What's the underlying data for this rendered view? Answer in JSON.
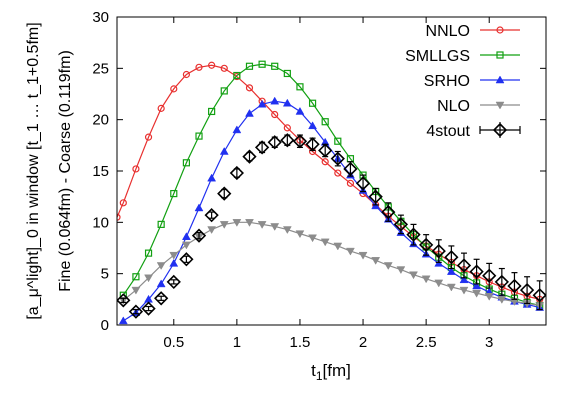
{
  "chart_data": {
    "type": "line",
    "xlabel": "t",
    "xlabel_sub": "1",
    "xlabel_unit": "[fm]",
    "ylabel_line1": "[a_μ^light]_0 in window [t_1 … t_1+0.5fm]",
    "ylabel_line2": "Fine (0.064fm) - Coarse (0.119fm)",
    "xlim": [
      0.05,
      3.45
    ],
    "ylim": [
      0,
      30
    ],
    "xticks": [
      0.5,
      1,
      1.5,
      2,
      2.5,
      3
    ],
    "xtick_labels": [
      "0.5",
      "1",
      "1.5",
      "2",
      "2.5",
      "3"
    ],
    "yticks": [
      0,
      5,
      10,
      15,
      20,
      25,
      30
    ],
    "ytick_labels": [
      "0",
      "5",
      "10",
      "15",
      "20",
      "25",
      "30"
    ],
    "legend_position": "top-right",
    "series": [
      {
        "name": "NNLO",
        "color": "#e8302f",
        "marker": "circle",
        "x": [
          0.05,
          0.1,
          0.2,
          0.3,
          0.4,
          0.5,
          0.6,
          0.7,
          0.8,
          0.9,
          1.0,
          1.1,
          1.2,
          1.3,
          1.4,
          1.5,
          1.6,
          1.7,
          1.8,
          1.9,
          2.0,
          2.1,
          2.2,
          2.3,
          2.4,
          2.5,
          2.6,
          2.7,
          2.8,
          2.9,
          3.0,
          3.1,
          3.2,
          3.3,
          3.4
        ],
        "y": [
          10.5,
          11.9,
          15.2,
          18.3,
          21.1,
          23.0,
          24.4,
          25.1,
          25.3,
          25.0,
          24.2,
          23.1,
          21.8,
          20.5,
          19.2,
          18.0,
          16.9,
          15.9,
          14.8,
          13.8,
          12.8,
          11.7,
          10.6,
          9.6,
          8.6,
          7.7,
          6.9,
          6.1,
          5.4,
          4.8,
          4.2,
          3.7,
          3.2,
          2.8,
          2.5
        ]
      },
      {
        "name": "SMLLGS",
        "color": "#12a012",
        "marker": "square",
        "x": [
          0.1,
          0.2,
          0.3,
          0.4,
          0.5,
          0.6,
          0.7,
          0.8,
          0.9,
          1.0,
          1.1,
          1.2,
          1.3,
          1.4,
          1.5,
          1.6,
          1.7,
          1.8,
          1.9,
          2.0,
          2.1,
          2.2,
          2.3,
          2.4,
          2.5,
          2.6,
          2.7,
          2.8,
          2.9,
          3.0,
          3.1,
          3.2,
          3.3,
          3.4
        ],
        "y": [
          2.9,
          4.7,
          7.0,
          9.8,
          12.8,
          15.8,
          18.4,
          20.8,
          22.8,
          24.3,
          25.2,
          25.4,
          25.2,
          24.5,
          23.2,
          21.6,
          19.8,
          17.9,
          16.2,
          14.6,
          13.0,
          11.5,
          10.1,
          8.8,
          7.6,
          6.6,
          5.6,
          4.8,
          4.1,
          3.5,
          3.0,
          2.6,
          2.2,
          1.9
        ]
      },
      {
        "name": "SRHO",
        "color": "#2030f0",
        "marker": "triangle",
        "x": [
          0.1,
          0.2,
          0.3,
          0.4,
          0.5,
          0.6,
          0.7,
          0.8,
          0.9,
          1.0,
          1.1,
          1.2,
          1.3,
          1.4,
          1.5,
          1.6,
          1.7,
          1.8,
          1.9,
          2.0,
          2.1,
          2.2,
          2.3,
          2.4,
          2.5,
          2.6,
          2.7,
          2.8,
          2.9,
          3.0,
          3.1,
          3.2,
          3.3,
          3.4
        ],
        "y": [
          0.4,
          1.2,
          2.5,
          4.0,
          6.0,
          8.6,
          11.4,
          14.3,
          16.9,
          19.0,
          20.6,
          21.5,
          21.8,
          21.6,
          20.8,
          19.4,
          17.8,
          16.2,
          14.6,
          13.1,
          11.6,
          10.3,
          9.0,
          7.9,
          6.9,
          6.0,
          5.2,
          4.4,
          3.8,
          3.2,
          2.7,
          2.3,
          2.0,
          1.7
        ]
      },
      {
        "name": "NLO",
        "color": "#8c8c8c",
        "marker": "triangle-down",
        "x": [
          0.1,
          0.2,
          0.3,
          0.4,
          0.5,
          0.6,
          0.7,
          0.8,
          0.9,
          1.0,
          1.1,
          1.2,
          1.3,
          1.4,
          1.5,
          1.6,
          1.7,
          1.8,
          1.9,
          2.0,
          2.1,
          2.2,
          2.3,
          2.4,
          2.5,
          2.6,
          2.7,
          2.8,
          2.9,
          3.0,
          3.1,
          3.2,
          3.3,
          3.4
        ],
        "y": [
          2.4,
          3.4,
          4.6,
          5.8,
          6.8,
          7.8,
          8.6,
          9.3,
          9.8,
          10.0,
          10.0,
          9.8,
          9.6,
          9.3,
          8.9,
          8.5,
          8.1,
          7.7,
          7.2,
          6.8,
          6.3,
          5.8,
          5.4,
          4.9,
          4.5,
          4.1,
          3.7,
          3.4,
          3.1,
          2.8,
          2.5,
          2.3,
          2.1,
          1.9
        ]
      },
      {
        "name": "4stout",
        "color": "#000000",
        "marker": "diamond",
        "x": [
          0.1,
          0.2,
          0.3,
          0.4,
          0.5,
          0.6,
          0.7,
          0.8,
          0.9,
          1.0,
          1.1,
          1.2,
          1.3,
          1.4,
          1.5,
          1.6,
          1.7,
          1.8,
          1.9,
          2.0,
          2.1,
          2.2,
          2.3,
          2.4,
          2.5,
          2.6,
          2.7,
          2.8,
          2.9,
          3.0,
          3.1,
          3.2,
          3.3,
          3.4
        ],
        "y": [
          2.4,
          1.3,
          1.6,
          2.6,
          4.2,
          6.4,
          8.7,
          10.7,
          12.8,
          14.8,
          16.4,
          17.3,
          17.8,
          18.0,
          17.9,
          17.6,
          17.0,
          16.2,
          15.2,
          13.8,
          12.5,
          11.0,
          9.8,
          8.8,
          7.8,
          7.2,
          6.6,
          5.8,
          5.2,
          4.8,
          4.2,
          3.8,
          3.4,
          2.9
        ],
        "err": [
          0.2,
          0.2,
          0.2,
          0.2,
          0.2,
          0.3,
          0.3,
          0.3,
          0.4,
          0.4,
          0.4,
          0.5,
          0.5,
          0.5,
          0.6,
          0.6,
          0.6,
          0.7,
          0.7,
          0.8,
          0.8,
          0.9,
          0.9,
          1.0,
          1.0,
          1.1,
          1.1,
          1.2,
          1.2,
          1.2,
          1.3,
          1.3,
          1.3,
          1.4
        ]
      }
    ]
  }
}
